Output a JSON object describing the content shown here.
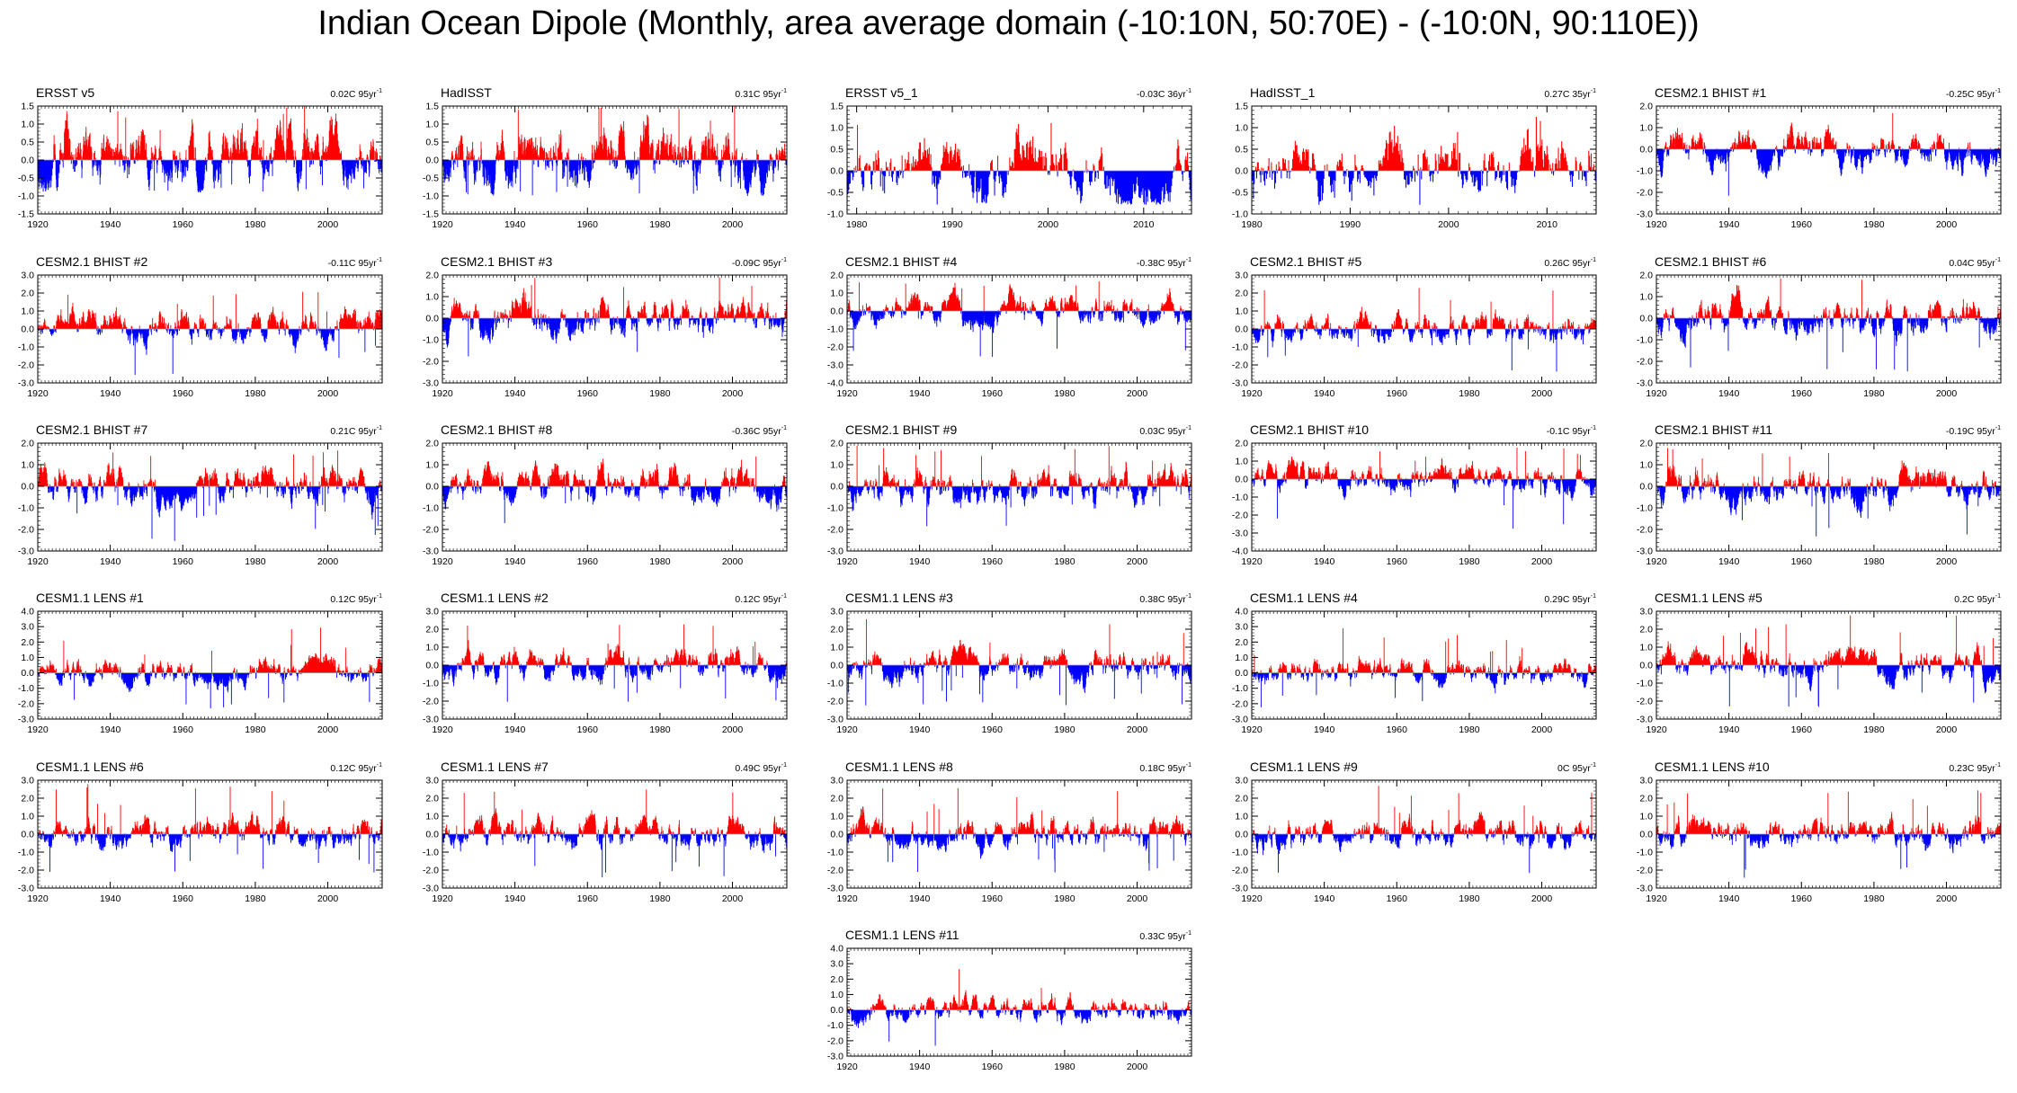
{
  "title": "Indian Ocean Dipole (Monthly, area average domain (-10:10N, 50:70E) - (-10:0N, 90:110E))",
  "colors": {
    "positive": "#ff0000",
    "negative": "#0000ff",
    "axis": "#000000",
    "zero_line": "#999999"
  },
  "chart_data": [
    {
      "type": "bar",
      "name": "ERSST v5",
      "trend": "0.02C 95yr",
      "trend_exp": "-1",
      "xlim": [
        1920,
        2015
      ],
      "x_ticks": [
        1920,
        1940,
        1960,
        1980,
        2000
      ],
      "ylim": [
        -1.5,
        1.5
      ],
      "y_ticks": [
        "-1.5",
        "-1.0",
        "-0.5",
        "0.0",
        "0.5",
        "1.0",
        "1.5"
      ],
      "amp_pos": 1.5,
      "amp_neg": 0.9,
      "seed": 11
    },
    {
      "type": "bar",
      "name": "HadISST",
      "trend": "0.31C 95yr",
      "trend_exp": "-1",
      "xlim": [
        1920,
        2015
      ],
      "x_ticks": [
        1920,
        1940,
        1960,
        1980,
        2000
      ],
      "ylim": [
        -1.5,
        1.5
      ],
      "y_ticks": [
        "-1.5",
        "-1.0",
        "-0.5",
        "0.0",
        "0.5",
        "1.0",
        "1.5"
      ],
      "amp_pos": 1.5,
      "amp_neg": 1.0,
      "seed": 23
    },
    {
      "type": "bar",
      "name": "ERSST v5_1",
      "trend": "-0.03C 36yr",
      "trend_exp": "-1",
      "xlim": [
        1979,
        2015
      ],
      "x_ticks": [
        1980,
        1990,
        2000,
        2010
      ],
      "ylim": [
        -1.0,
        1.5
      ],
      "y_ticks": [
        "-1.0",
        "-0.5",
        "0.0",
        "0.5",
        "1.0",
        "1.5"
      ],
      "amp_pos": 1.3,
      "amp_neg": 0.8,
      "seed": 37
    },
    {
      "type": "bar",
      "name": "HadISST_1",
      "trend": "0.27C 35yr",
      "trend_exp": "-1",
      "xlim": [
        1980,
        2015
      ],
      "x_ticks": [
        1980,
        1990,
        2000,
        2010
      ],
      "ylim": [
        -1.0,
        1.5
      ],
      "y_ticks": [
        "-1.0",
        "-0.5",
        "0.0",
        "0.5",
        "1.0",
        "1.5"
      ],
      "amp_pos": 1.3,
      "amp_neg": 0.8,
      "seed": 41
    },
    {
      "type": "bar",
      "name": "CESM2.1 BHIST #1",
      "trend": "-0.25C 95yr",
      "trend_exp": "-1",
      "xlim": [
        1920,
        2015
      ],
      "x_ticks": [
        1920,
        1940,
        1960,
        1980,
        2000
      ],
      "ylim": [
        -3.0,
        2.0
      ],
      "y_ticks": [
        "-3.0",
        "-2.0",
        "-1.0",
        "0.0",
        "1.0",
        "2.0"
      ],
      "amp_pos": 1.8,
      "amp_neg": 2.6,
      "seed": 53
    },
    {
      "type": "bar",
      "name": "CESM2.1 BHIST #2",
      "trend": "-0.11C 95yr",
      "trend_exp": "-1",
      "xlim": [
        1920,
        2015
      ],
      "x_ticks": [
        1920,
        1940,
        1960,
        1980,
        2000
      ],
      "ylim": [
        -3.0,
        3.0
      ],
      "y_ticks": [
        "-3.0",
        "-2.0",
        "-1.0",
        "0.0",
        "1.0",
        "2.0",
        "3.0"
      ],
      "amp_pos": 2.2,
      "amp_neg": 2.6,
      "seed": 61
    },
    {
      "type": "bar",
      "name": "CESM2.1 BHIST #3",
      "trend": "-0.09C 95yr",
      "trend_exp": "-1",
      "xlim": [
        1920,
        2015
      ],
      "x_ticks": [
        1920,
        1940,
        1960,
        1980,
        2000
      ],
      "ylim": [
        -3.0,
        2.0
      ],
      "y_ticks": [
        "-3.0",
        "-2.0",
        "-1.0",
        "0.0",
        "1.0",
        "2.0"
      ],
      "amp_pos": 1.9,
      "amp_neg": 2.6,
      "seed": 67
    },
    {
      "type": "bar",
      "name": "CESM2.1 BHIST #4",
      "trend": "-0.38C 95yr",
      "trend_exp": "-1",
      "xlim": [
        1920,
        2015
      ],
      "x_ticks": [
        1920,
        1940,
        1960,
        1980,
        2000
      ],
      "ylim": [
        -4.0,
        2.0
      ],
      "y_ticks": [
        "-4.0",
        "-3.0",
        "-2.0",
        "-1.0",
        "0.0",
        "1.0",
        "2.0"
      ],
      "amp_pos": 1.7,
      "amp_neg": 3.0,
      "seed": 71
    },
    {
      "type": "bar",
      "name": "CESM2.1 BHIST #5",
      "trend": "0.26C 95yr",
      "trend_exp": "-1",
      "xlim": [
        1920,
        2015
      ],
      "x_ticks": [
        1920,
        1940,
        1960,
        1980,
        2000
      ],
      "ylim": [
        -3.0,
        3.0
      ],
      "y_ticks": [
        "-3.0",
        "-2.0",
        "-1.0",
        "0.0",
        "1.0",
        "2.0",
        "3.0"
      ],
      "amp_pos": 2.3,
      "amp_neg": 2.4,
      "seed": 79
    },
    {
      "type": "bar",
      "name": "CESM2.1 BHIST #6",
      "trend": "0.04C 95yr",
      "trend_exp": "-1",
      "xlim": [
        1920,
        2015
      ],
      "x_ticks": [
        1920,
        1940,
        1960,
        1980,
        2000
      ],
      "ylim": [
        -3.0,
        2.0
      ],
      "y_ticks": [
        "-3.0",
        "-2.0",
        "-1.0",
        "0.0",
        "1.0",
        "2.0"
      ],
      "amp_pos": 1.9,
      "amp_neg": 2.5,
      "seed": 83
    },
    {
      "type": "bar",
      "name": "CESM2.1 BHIST #7",
      "trend": "0.21C 95yr",
      "trend_exp": "-1",
      "xlim": [
        1920,
        2015
      ],
      "x_ticks": [
        1920,
        1940,
        1960,
        1980,
        2000
      ],
      "ylim": [
        -3.0,
        2.0
      ],
      "y_ticks": [
        "-3.0",
        "-2.0",
        "-1.0",
        "0.0",
        "1.0",
        "2.0"
      ],
      "amp_pos": 1.8,
      "amp_neg": 2.6,
      "seed": 89
    },
    {
      "type": "bar",
      "name": "CESM2.1 BHIST #8",
      "trend": "-0.36C 95yr",
      "trend_exp": "-1",
      "xlim": [
        1920,
        2015
      ],
      "x_ticks": [
        1920,
        1940,
        1960,
        1980,
        2000
      ],
      "ylim": [
        -3.0,
        2.0
      ],
      "y_ticks": [
        "-3.0",
        "-2.0",
        "-1.0",
        "0.0",
        "1.0",
        "2.0"
      ],
      "amp_pos": 1.4,
      "amp_neg": 2.8,
      "seed": 97
    },
    {
      "type": "bar",
      "name": "CESM2.1 BHIST #9",
      "trend": "0.03C 95yr",
      "trend_exp": "-1",
      "xlim": [
        1920,
        2015
      ],
      "x_ticks": [
        1920,
        1940,
        1960,
        1980,
        2000
      ],
      "ylim": [
        -3.0,
        2.0
      ],
      "y_ticks": [
        "-3.0",
        "-2.0",
        "-1.0",
        "0.0",
        "1.0",
        "2.0"
      ],
      "amp_pos": 1.9,
      "amp_neg": 2.4,
      "seed": 101
    },
    {
      "type": "bar",
      "name": "CESM2.1 BHIST #10",
      "trend": "-0.1C 95yr",
      "trend_exp": "-1",
      "xlim": [
        1920,
        2015
      ],
      "x_ticks": [
        1920,
        1940,
        1960,
        1980,
        2000
      ],
      "ylim": [
        -4.0,
        2.0
      ],
      "y_ticks": [
        "-4.0",
        "-3.0",
        "-2.0",
        "-1.0",
        "0.0",
        "1.0",
        "2.0"
      ],
      "amp_pos": 1.9,
      "amp_neg": 3.2,
      "seed": 103
    },
    {
      "type": "bar",
      "name": "CESM2.1 BHIST #11",
      "trend": "-0.19C 95yr",
      "trend_exp": "-1",
      "xlim": [
        1920,
        2015
      ],
      "x_ticks": [
        1920,
        1940,
        1960,
        1980,
        2000
      ],
      "ylim": [
        -3.0,
        2.0
      ],
      "y_ticks": [
        "-3.0",
        "-2.0",
        "-1.0",
        "0.0",
        "1.0",
        "2.0"
      ],
      "amp_pos": 1.8,
      "amp_neg": 2.6,
      "seed": 107
    },
    {
      "type": "bar",
      "name": "CESM1.1 LENS #1",
      "trend": "0.12C 95yr",
      "trend_exp": "-1",
      "xlim": [
        1920,
        2015
      ],
      "x_ticks": [
        1920,
        1940,
        1960,
        1980,
        2000
      ],
      "ylim": [
        -3.0,
        4.0
      ],
      "y_ticks": [
        "-3.0",
        "-2.0",
        "-1.0",
        "0.0",
        "1.0",
        "2.0",
        "3.0",
        "4.0"
      ],
      "amp_pos": 3.0,
      "amp_neg": 2.4,
      "seed": 109
    },
    {
      "type": "bar",
      "name": "CESM1.1 LENS #2",
      "trend": "0.12C 95yr",
      "trend_exp": "-1",
      "xlim": [
        1920,
        2015
      ],
      "x_ticks": [
        1920,
        1940,
        1960,
        1980,
        2000
      ],
      "ylim": [
        -3.0,
        3.0
      ],
      "y_ticks": [
        "-3.0",
        "-2.0",
        "-1.0",
        "0.0",
        "1.0",
        "2.0",
        "3.0"
      ],
      "amp_pos": 2.5,
      "amp_neg": 2.4,
      "seed": 113
    },
    {
      "type": "bar",
      "name": "CESM1.1 LENS #3",
      "trend": "0.38C 95yr",
      "trend_exp": "-1",
      "xlim": [
        1920,
        2015
      ],
      "x_ticks": [
        1920,
        1940,
        1960,
        1980,
        2000
      ],
      "ylim": [
        -3.0,
        3.0
      ],
      "y_ticks": [
        "-3.0",
        "-2.0",
        "-1.0",
        "0.0",
        "1.0",
        "2.0",
        "3.0"
      ],
      "amp_pos": 2.7,
      "amp_neg": 2.3,
      "seed": 127
    },
    {
      "type": "bar",
      "name": "CESM1.1 LENS #4",
      "trend": "0.29C 95yr",
      "trend_exp": "-1",
      "xlim": [
        1920,
        2015
      ],
      "x_ticks": [
        1920,
        1940,
        1960,
        1980,
        2000
      ],
      "ylim": [
        -3.0,
        4.0
      ],
      "y_ticks": [
        "-3.0",
        "-2.0",
        "-1.0",
        "0.0",
        "1.0",
        "2.0",
        "3.0",
        "4.0"
      ],
      "amp_pos": 3.0,
      "amp_neg": 2.3,
      "seed": 131
    },
    {
      "type": "bar",
      "name": "CESM1.1 LENS #5",
      "trend": "0.2C 95yr",
      "trend_exp": "-1",
      "xlim": [
        1920,
        2015
      ],
      "x_ticks": [
        1920,
        1940,
        1960,
        1980,
        2000
      ],
      "ylim": [
        -3.0,
        3.0
      ],
      "y_ticks": [
        "-3.0",
        "-2.0",
        "-1.0",
        "0.0",
        "1.0",
        "2.0",
        "3.0"
      ],
      "amp_pos": 2.8,
      "amp_neg": 2.4,
      "seed": 137
    },
    {
      "type": "bar",
      "name": "CESM1.1 LENS #6",
      "trend": "0.12C 95yr",
      "trend_exp": "-1",
      "xlim": [
        1920,
        2015
      ],
      "x_ticks": [
        1920,
        1940,
        1960,
        1980,
        2000
      ],
      "ylim": [
        -3.0,
        3.0
      ],
      "y_ticks": [
        "-3.0",
        "-2.0",
        "-1.0",
        "0.0",
        "1.0",
        "2.0",
        "3.0"
      ],
      "amp_pos": 2.8,
      "amp_neg": 2.3,
      "seed": 139
    },
    {
      "type": "bar",
      "name": "CESM1.1 LENS #7",
      "trend": "0.49C 95yr",
      "trend_exp": "-1",
      "xlim": [
        1920,
        2015
      ],
      "x_ticks": [
        1920,
        1940,
        1960,
        1980,
        2000
      ],
      "ylim": [
        -3.0,
        3.0
      ],
      "y_ticks": [
        "-3.0",
        "-2.0",
        "-1.0",
        "0.0",
        "1.0",
        "2.0",
        "3.0"
      ],
      "amp_pos": 2.7,
      "amp_neg": 2.5,
      "seed": 149
    },
    {
      "type": "bar",
      "name": "CESM1.1 LENS #8",
      "trend": "0.18C 95yr",
      "trend_exp": "-1",
      "xlim": [
        1920,
        2015
      ],
      "x_ticks": [
        1920,
        1940,
        1960,
        1980,
        2000
      ],
      "ylim": [
        -3.0,
        3.0
      ],
      "y_ticks": [
        "-3.0",
        "-2.0",
        "-1.0",
        "0.0",
        "1.0",
        "2.0",
        "3.0"
      ],
      "amp_pos": 2.6,
      "amp_neg": 2.3,
      "seed": 151
    },
    {
      "type": "bar",
      "name": "CESM1.1 LENS #9",
      "trend": "0C 95yr",
      "trend_exp": "-1",
      "xlim": [
        1920,
        2015
      ],
      "x_ticks": [
        1920,
        1940,
        1960,
        1980,
        2000
      ],
      "ylim": [
        -3.0,
        3.0
      ],
      "y_ticks": [
        "-3.0",
        "-2.0",
        "-1.0",
        "0.0",
        "1.0",
        "2.0",
        "3.0"
      ],
      "amp_pos": 2.7,
      "amp_neg": 2.3,
      "seed": 157
    },
    {
      "type": "bar",
      "name": "CESM1.1 LENS #10",
      "trend": "0.23C 95yr",
      "trend_exp": "-1",
      "xlim": [
        1920,
        2015
      ],
      "x_ticks": [
        1920,
        1940,
        1960,
        1980,
        2000
      ],
      "ylim": [
        -3.0,
        3.0
      ],
      "y_ticks": [
        "-3.0",
        "-2.0",
        "-1.0",
        "0.0",
        "1.0",
        "2.0",
        "3.0"
      ],
      "amp_pos": 2.6,
      "amp_neg": 2.5,
      "seed": 163
    },
    {
      "type": "bar",
      "name": "CESM1.1 LENS #11",
      "trend": "0.33C 95yr",
      "trend_exp": "-1",
      "xlim": [
        1920,
        2015
      ],
      "x_ticks": [
        1920,
        1940,
        1960,
        1980,
        2000
      ],
      "ylim": [
        -3.0,
        4.0
      ],
      "y_ticks": [
        "-3.0",
        "-2.0",
        "-1.0",
        "0.0",
        "1.0",
        "2.0",
        "3.0",
        "4.0"
      ],
      "amp_pos": 2.9,
      "amp_neg": 2.4,
      "seed": 167
    }
  ]
}
